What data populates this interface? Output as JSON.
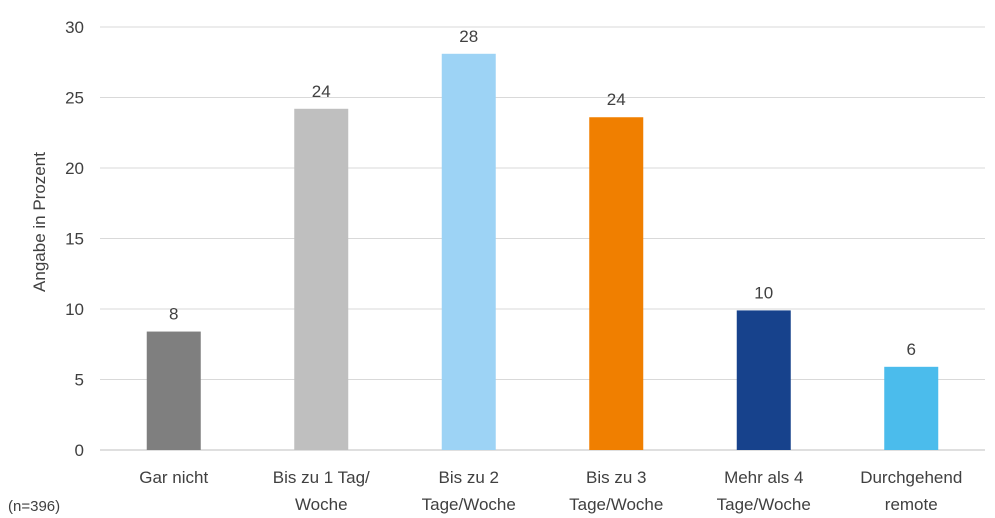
{
  "chart_data": {
    "type": "bar",
    "categories": [
      [
        "Gar nicht"
      ],
      [
        "Bis zu 1 Tag/",
        "Woche"
      ],
      [
        "Bis zu 2",
        "Tage/Woche"
      ],
      [
        "Bis zu 3",
        "Tage/Woche"
      ],
      [
        "Mehr als 4",
        "Tage/Woche"
      ],
      [
        "Durchgehend",
        "remote"
      ]
    ],
    "values": [
      8.4,
      24.2,
      28.1,
      23.6,
      9.9,
      5.9
    ],
    "data_labels": [
      "8",
      "24",
      "28",
      "24",
      "10",
      "6"
    ],
    "colors": [
      "#7f7f7f",
      "#bfbfbf",
      "#9dd3f5",
      "#f07f00",
      "#17428c",
      "#4bbcec"
    ],
    "ylabel": "Angabe in Prozent",
    "ylim": [
      0,
      30
    ],
    "yticks": [
      0,
      5,
      10,
      15,
      20,
      25,
      30
    ],
    "grid": true,
    "legend": "none"
  },
  "note": "(n=396)"
}
